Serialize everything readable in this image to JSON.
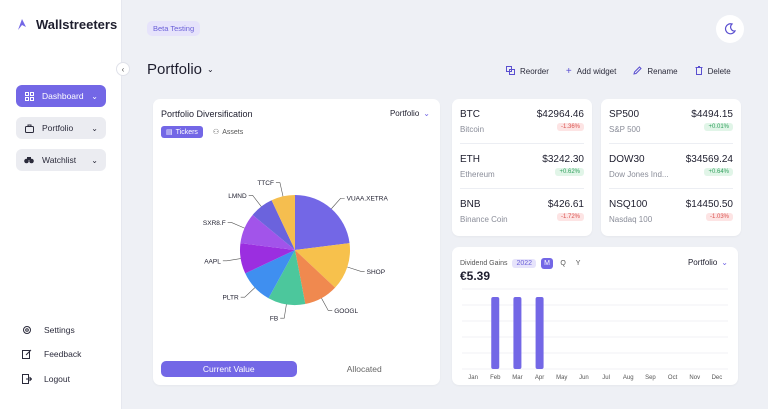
{
  "brand": {
    "name": "Wallstreeters",
    "accent": "#7367e6"
  },
  "sidebar": {
    "nav": [
      {
        "label": "Dashboard",
        "icon": "grid-icon",
        "active": true
      },
      {
        "label": "Portfolio",
        "icon": "briefcase-icon",
        "active": false
      },
      {
        "label": "Watchlist",
        "icon": "binoculars-icon",
        "active": false
      }
    ],
    "bottom": [
      {
        "label": "Settings",
        "icon": "gear-icon"
      },
      {
        "label": "Feedback",
        "icon": "edit-icon"
      },
      {
        "label": "Logout",
        "icon": "logout-icon"
      }
    ]
  },
  "header": {
    "badge": "Beta Testing",
    "title": "Portfolio",
    "actions": [
      {
        "label": "Reorder",
        "icon": "reorder-icon"
      },
      {
        "label": "Add widget",
        "icon": "plus-icon"
      },
      {
        "label": "Rename",
        "icon": "pencil-icon"
      },
      {
        "label": "Delete",
        "icon": "trash-icon"
      }
    ]
  },
  "diversification": {
    "title": "Portfolio Diversification",
    "select": "Portfolio",
    "tabs": [
      "Tickers",
      "Assets"
    ],
    "footer": [
      "Current Value",
      "Allocated"
    ]
  },
  "chart_data": [
    {
      "type": "pie",
      "title": "",
      "slices": [
        {
          "label": "VUAA.XETRA",
          "value": 23,
          "color": "#7367e6"
        },
        {
          "label": "SHOP",
          "value": 14,
          "color": "#f7c14c"
        },
        {
          "label": "GOOGL",
          "value": 10,
          "color": "#f0894f"
        },
        {
          "label": "FB",
          "value": 11,
          "color": "#4cc79c"
        },
        {
          "label": "PLTR",
          "value": 10,
          "color": "#3f8ff0"
        },
        {
          "label": "AAPL",
          "value": 9,
          "color": "#9b2ee0"
        },
        {
          "label": "SXR8.F",
          "value": 9,
          "color": "#a254ea"
        },
        {
          "label": "LMND",
          "value": 7,
          "color": "#6b63dd"
        },
        {
          "label": "TTCF",
          "value": 7,
          "color": "#f5be4f"
        }
      ]
    },
    {
      "type": "bar",
      "title": "",
      "categories": [
        "Jan",
        "Feb",
        "Mar",
        "Apr",
        "May",
        "Jun",
        "Jul",
        "Aug",
        "Sep",
        "Oct",
        "Nov",
        "Dec"
      ],
      "values": [
        0,
        1.8,
        1.8,
        1.8,
        0,
        0,
        0,
        0,
        0,
        0,
        0,
        0
      ],
      "ylim": [
        0,
        2
      ],
      "grid": true
    }
  ],
  "tickers_left": [
    {
      "symbol": "BTC",
      "name": "Bitcoin",
      "price": "$42964.46",
      "change": "-1.36%",
      "dir": "neg"
    },
    {
      "symbol": "ETH",
      "name": "Ethereum",
      "price": "$3242.30",
      "change": "+0.62%",
      "dir": "pos"
    },
    {
      "symbol": "BNB",
      "name": "Binance Coin",
      "price": "$426.61",
      "change": "-1.72%",
      "dir": "neg"
    }
  ],
  "tickers_right": [
    {
      "symbol": "SP500",
      "name": "S&P 500",
      "price": "$4494.15",
      "change": "+0.01%",
      "dir": "pos"
    },
    {
      "symbol": "DOW30",
      "name": "Dow Jones Ind...",
      "price": "$34569.24",
      "change": "+0.64%",
      "dir": "pos"
    },
    {
      "symbol": "NSQ100",
      "name": "Nasdaq 100",
      "price": "$14450.50",
      "change": "-1.03%",
      "dir": "neg"
    }
  ],
  "dividends": {
    "label": "Dividend Gains",
    "year": "2022",
    "periods": [
      "M",
      "Q",
      "Y"
    ],
    "amount": "€5.39",
    "select": "Portfolio"
  }
}
